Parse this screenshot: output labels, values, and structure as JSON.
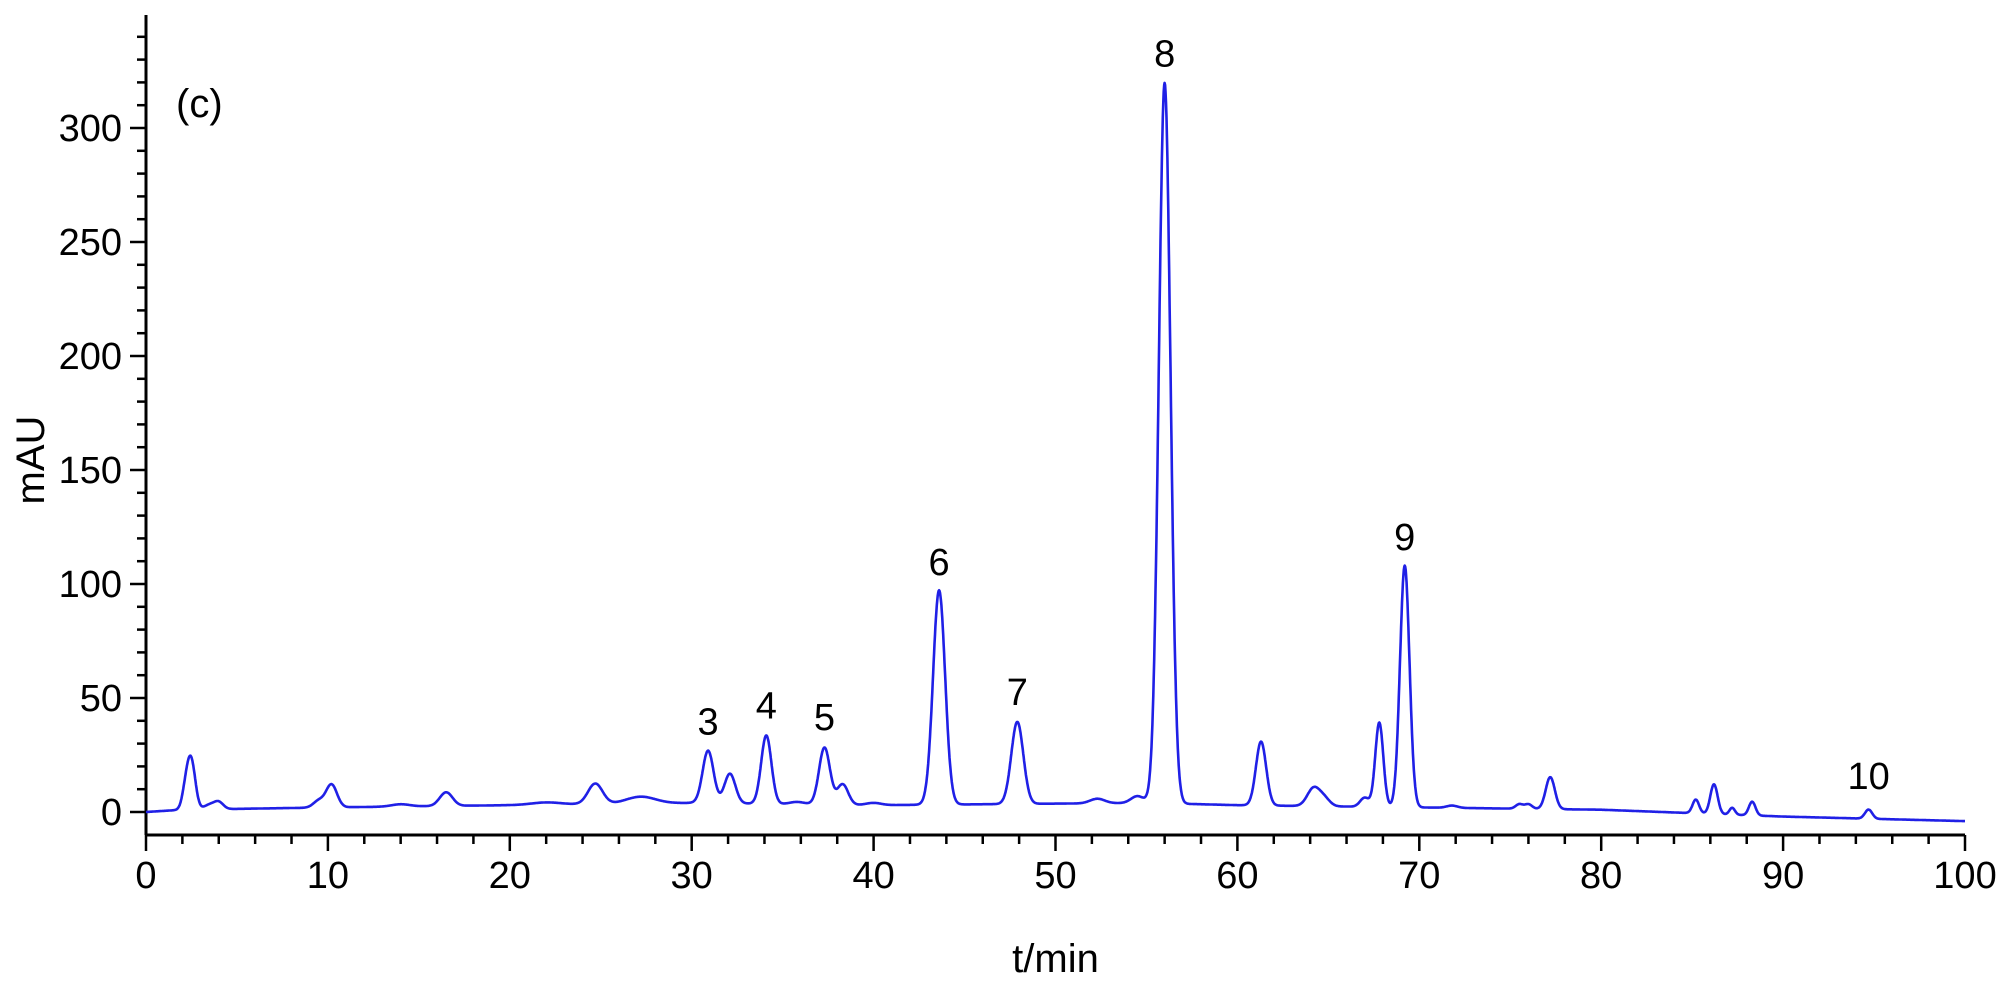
{
  "chart_data": {
    "type": "line",
    "panel_label": "(c)",
    "xlabel": "t/min",
    "ylabel": "mAU",
    "xlim": [
      0,
      100
    ],
    "ylim": [
      -8,
      350
    ],
    "xticks": [
      0,
      10,
      20,
      30,
      40,
      50,
      60,
      70,
      80,
      90,
      100
    ],
    "yticks": [
      0,
      50,
      100,
      150,
      200,
      250,
      300
    ],
    "grid": false,
    "line_color": "#2020e6",
    "baseline": [
      [
        0,
        0
      ],
      [
        2,
        1
      ],
      [
        10,
        2
      ],
      [
        20,
        3
      ],
      [
        30,
        4
      ],
      [
        40,
        3
      ],
      [
        55,
        4
      ],
      [
        60,
        3
      ],
      [
        70,
        2
      ],
      [
        80,
        1
      ],
      [
        90,
        -2
      ],
      [
        100,
        -4
      ]
    ],
    "peaks": [
      {
        "t": 2.5,
        "height": 20,
        "width": 0.22
      },
      {
        "t": 2.2,
        "height": 9,
        "width": 0.2
      },
      {
        "t": 3.5,
        "height": 2,
        "width": 0.3
      },
      {
        "t": 4.0,
        "height": 3,
        "width": 0.25
      },
      {
        "t": 9.5,
        "height": 3,
        "width": 0.3
      },
      {
        "t": 10.2,
        "height": 10,
        "width": 0.3
      },
      {
        "t": 14.0,
        "height": 1,
        "width": 0.5
      },
      {
        "t": 16.5,
        "height": 6,
        "width": 0.35
      },
      {
        "t": 22.0,
        "height": 1,
        "width": 0.8
      },
      {
        "t": 24.7,
        "height": 9,
        "width": 0.4
      },
      {
        "t": 27.2,
        "height": 3,
        "width": 0.8
      },
      {
        "t": 30.9,
        "height": 23,
        "width": 0.3
      },
      {
        "t": 32.1,
        "height": 13,
        "width": 0.3
      },
      {
        "t": 34.1,
        "height": 30,
        "width": 0.28
      },
      {
        "t": 35.8,
        "height": 1,
        "width": 0.4
      },
      {
        "t": 37.3,
        "height": 25,
        "width": 0.3
      },
      {
        "t": 38.3,
        "height": 9,
        "width": 0.3
      },
      {
        "t": 40.0,
        "height": 1,
        "width": 0.4
      },
      {
        "t": 43.6,
        "height": 94,
        "width": 0.33
      },
      {
        "t": 47.9,
        "height": 36,
        "width": 0.33
      },
      {
        "t": 52.3,
        "height": 2,
        "width": 0.4
      },
      {
        "t": 54.5,
        "height": 3,
        "width": 0.35
      },
      {
        "t": 56.0,
        "height": 316,
        "width": 0.32
      },
      {
        "t": 61.3,
        "height": 28,
        "width": 0.28
      },
      {
        "t": 64.2,
        "height": 8,
        "width": 0.35
      },
      {
        "t": 64.8,
        "height": 3,
        "width": 0.3
      },
      {
        "t": 67.0,
        "height": 4,
        "width": 0.25
      },
      {
        "t": 67.8,
        "height": 37,
        "width": 0.22
      },
      {
        "t": 69.2,
        "height": 106,
        "width": 0.26
      },
      {
        "t": 71.8,
        "height": 1,
        "width": 0.3
      },
      {
        "t": 75.5,
        "height": 2,
        "width": 0.2
      },
      {
        "t": 76.0,
        "height": 2,
        "width": 0.2
      },
      {
        "t": 77.2,
        "height": 14,
        "width": 0.25
      },
      {
        "t": 85.2,
        "height": 6,
        "width": 0.18
      },
      {
        "t": 86.2,
        "height": 13,
        "width": 0.2
      },
      {
        "t": 87.2,
        "height": 3,
        "width": 0.15
      },
      {
        "t": 88.3,
        "height": 6,
        "width": 0.18
      },
      {
        "t": 94.7,
        "height": 4,
        "width": 0.2
      }
    ],
    "annotations": [
      {
        "label": "3",
        "x": 30.9,
        "y": 27
      },
      {
        "label": "4",
        "x": 34.1,
        "y": 34
      },
      {
        "label": "5",
        "x": 37.3,
        "y": 29
      },
      {
        "label": "6",
        "x": 43.6,
        "y": 97
      },
      {
        "label": "7",
        "x": 47.9,
        "y": 40
      },
      {
        "label": "8",
        "x": 56.0,
        "y": 320
      },
      {
        "label": "9",
        "x": 69.2,
        "y": 108
      },
      {
        "label": "10",
        "x": 94.7,
        "y": 3
      }
    ]
  }
}
